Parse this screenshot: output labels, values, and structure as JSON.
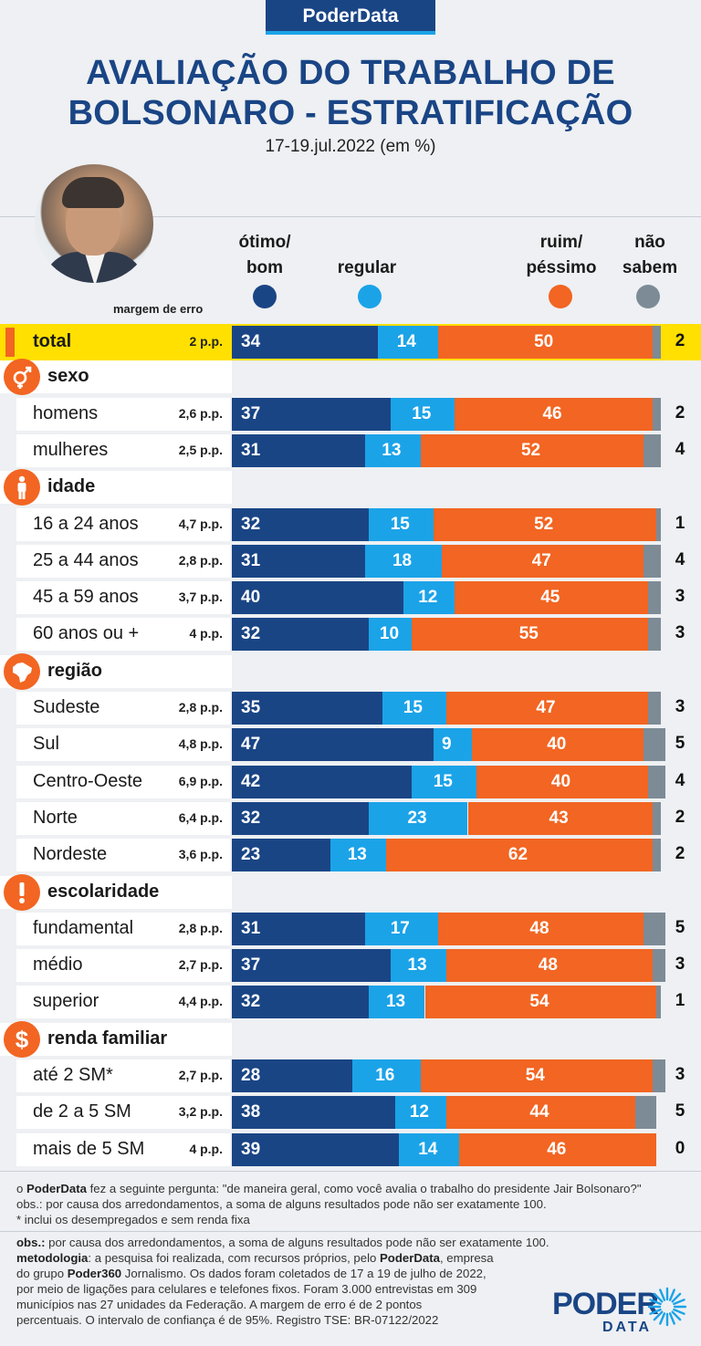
{
  "header": {
    "brand": "PoderData",
    "title_line1": "AVALIAÇÃO DO TRABALHO DE",
    "title_line2": "BOLSONARO - ESTRATIFICAÇÃO",
    "subtitle": "17-19.jul.2022 (em %)"
  },
  "colors": {
    "otimo_bom": "#1a4585",
    "regular": "#1ba3e8",
    "ruim_pessimo": "#f26522",
    "nao_sabem": "#7d8b96",
    "highlight": "#ffe000"
  },
  "legend": {
    "otimo_bom_1": "ótimo/",
    "otimo_bom_2": "bom",
    "regular": "regular",
    "ruim_pessimo_1": "ruim/",
    "ruim_pessimo_2": "péssimo",
    "nao_sabem_1": "não",
    "nao_sabem_2": "sabem",
    "margem_label": "margem de erro"
  },
  "chart_data": {
    "type": "bar",
    "stacked": true,
    "orientation": "horizontal",
    "series_names": [
      "ótimo/bom",
      "regular",
      "ruim/péssimo",
      "não sabem"
    ],
    "sections": [
      {
        "key": "total",
        "name": "",
        "icon": "",
        "rows": [
          {
            "label": "total",
            "margin": "2 p.p.",
            "otimo_bom": 34,
            "regular": 14,
            "ruim_pessimo": 50,
            "nao_sabem": 2
          }
        ]
      },
      {
        "key": "sexo",
        "name": "sexo",
        "icon": "gender-icon",
        "rows": [
          {
            "label": "homens",
            "margin": "2,6 p.p.",
            "otimo_bom": 37,
            "regular": 15,
            "ruim_pessimo": 46,
            "nao_sabem": 2
          },
          {
            "label": "mulheres",
            "margin": "2,5 p.p.",
            "otimo_bom": 31,
            "regular": 13,
            "ruim_pessimo": 52,
            "nao_sabem": 4
          }
        ]
      },
      {
        "key": "idade",
        "name": "idade",
        "icon": "person-icon",
        "rows": [
          {
            "label": "16 a 24 anos",
            "margin": "4,7 p.p.",
            "otimo_bom": 32,
            "regular": 15,
            "ruim_pessimo": 52,
            "nao_sabem": 1
          },
          {
            "label": "25 a 44 anos",
            "margin": "2,8 p.p.",
            "otimo_bom": 31,
            "regular": 18,
            "ruim_pessimo": 47,
            "nao_sabem": 4
          },
          {
            "label": "45 a 59 anos",
            "margin": "3,7 p.p.",
            "otimo_bom": 40,
            "regular": 12,
            "ruim_pessimo": 45,
            "nao_sabem": 3
          },
          {
            "label": "60 anos ou +",
            "margin": "4 p.p.",
            "otimo_bom": 32,
            "regular": 10,
            "ruim_pessimo": 55,
            "nao_sabem": 3
          }
        ]
      },
      {
        "key": "regiao",
        "name": "região",
        "icon": "brazil-map-icon",
        "rows": [
          {
            "label": "Sudeste",
            "margin": "2,8 p.p.",
            "otimo_bom": 35,
            "regular": 15,
            "ruim_pessimo": 47,
            "nao_sabem": 3
          },
          {
            "label": "Sul",
            "margin": "4,8 p.p.",
            "otimo_bom": 47,
            "regular": 9,
            "ruim_pessimo": 40,
            "nao_sabem": 5
          },
          {
            "label": "Centro-Oeste",
            "margin": "6,9 p.p.",
            "otimo_bom": 42,
            "regular": 15,
            "ruim_pessimo": 40,
            "nao_sabem": 4
          },
          {
            "label": "Norte",
            "margin": "6,4 p.p.",
            "otimo_bom": 32,
            "regular": 23,
            "ruim_pessimo": 43,
            "nao_sabem": 2
          },
          {
            "label": "Nordeste",
            "margin": "3,6 p.p.",
            "otimo_bom": 23,
            "regular": 13,
            "ruim_pessimo": 62,
            "nao_sabem": 2
          }
        ]
      },
      {
        "key": "escolaridade",
        "name": "escolaridade",
        "icon": "exclamation-icon",
        "rows": [
          {
            "label": "fundamental",
            "margin": "2,8 p.p.",
            "otimo_bom": 31,
            "regular": 17,
            "ruim_pessimo": 48,
            "nao_sabem": 5
          },
          {
            "label": "médio",
            "margin": "2,7 p.p.",
            "otimo_bom": 37,
            "regular": 13,
            "ruim_pessimo": 48,
            "nao_sabem": 3
          },
          {
            "label": "superior",
            "margin": "4,4 p.p.",
            "otimo_bom": 32,
            "regular": 13,
            "ruim_pessimo": 54,
            "nao_sabem": 1
          }
        ]
      },
      {
        "key": "renda",
        "name": "renda familiar",
        "icon": "dollar-icon",
        "rows": [
          {
            "label": "até 2 SM*",
            "margin": "2,7 p.p.",
            "otimo_bom": 28,
            "regular": 16,
            "ruim_pessimo": 54,
            "nao_sabem": 3
          },
          {
            "label": "de 2 a 5 SM",
            "margin": "3,2 p.p.",
            "otimo_bom": 38,
            "regular": 12,
            "ruim_pessimo": 44,
            "nao_sabem": 5
          },
          {
            "label": "mais de 5 SM",
            "margin": "4 p.p.",
            "otimo_bom": 39,
            "regular": 14,
            "ruim_pessimo": 46,
            "nao_sabem": 0
          }
        ]
      }
    ]
  },
  "footer": {
    "q_brand": "PoderData",
    "question_pre": "o ",
    "question_post": " fez a seguinte pergunta: \"de maneira geral, como você avalia o trabalho do presidente Jair Bolsonaro?\"",
    "obs_round": "obs.: por causa dos arredondamentos, a soma de alguns resultados pode não ser exatamente 100.",
    "note_sm": "* inclui os desempregados e sem renda fixa",
    "obs_label": "obs.:",
    "obs_text": " por causa dos arredondamentos, a soma de alguns resultados pode não ser exatamente 100.",
    "met_label": "metodologia",
    "met_1": ": a pesquisa foi realizada, com recursos próprios, pelo ",
    "met_brand": "PoderData",
    "met_2": ", empresa",
    "met_3": "do grupo ",
    "met_brand2": "Poder360",
    "met_4": " Jornalismo. Os dados foram coletados de 17 a 19 de julho de 2022,",
    "met_5": "por meio de ligações para celulares e telefones fixos. Foram 3.000 entrevistas em 309",
    "met_6": "municípios nas 27 unidades da Federação. A margem de erro é de 2 pontos",
    "met_7": "percentuais. O intervalo de confiança é de 95%. Registro TSE: BR-07122/2022"
  },
  "logo": {
    "poder": "PODER",
    "data": "DATA"
  }
}
